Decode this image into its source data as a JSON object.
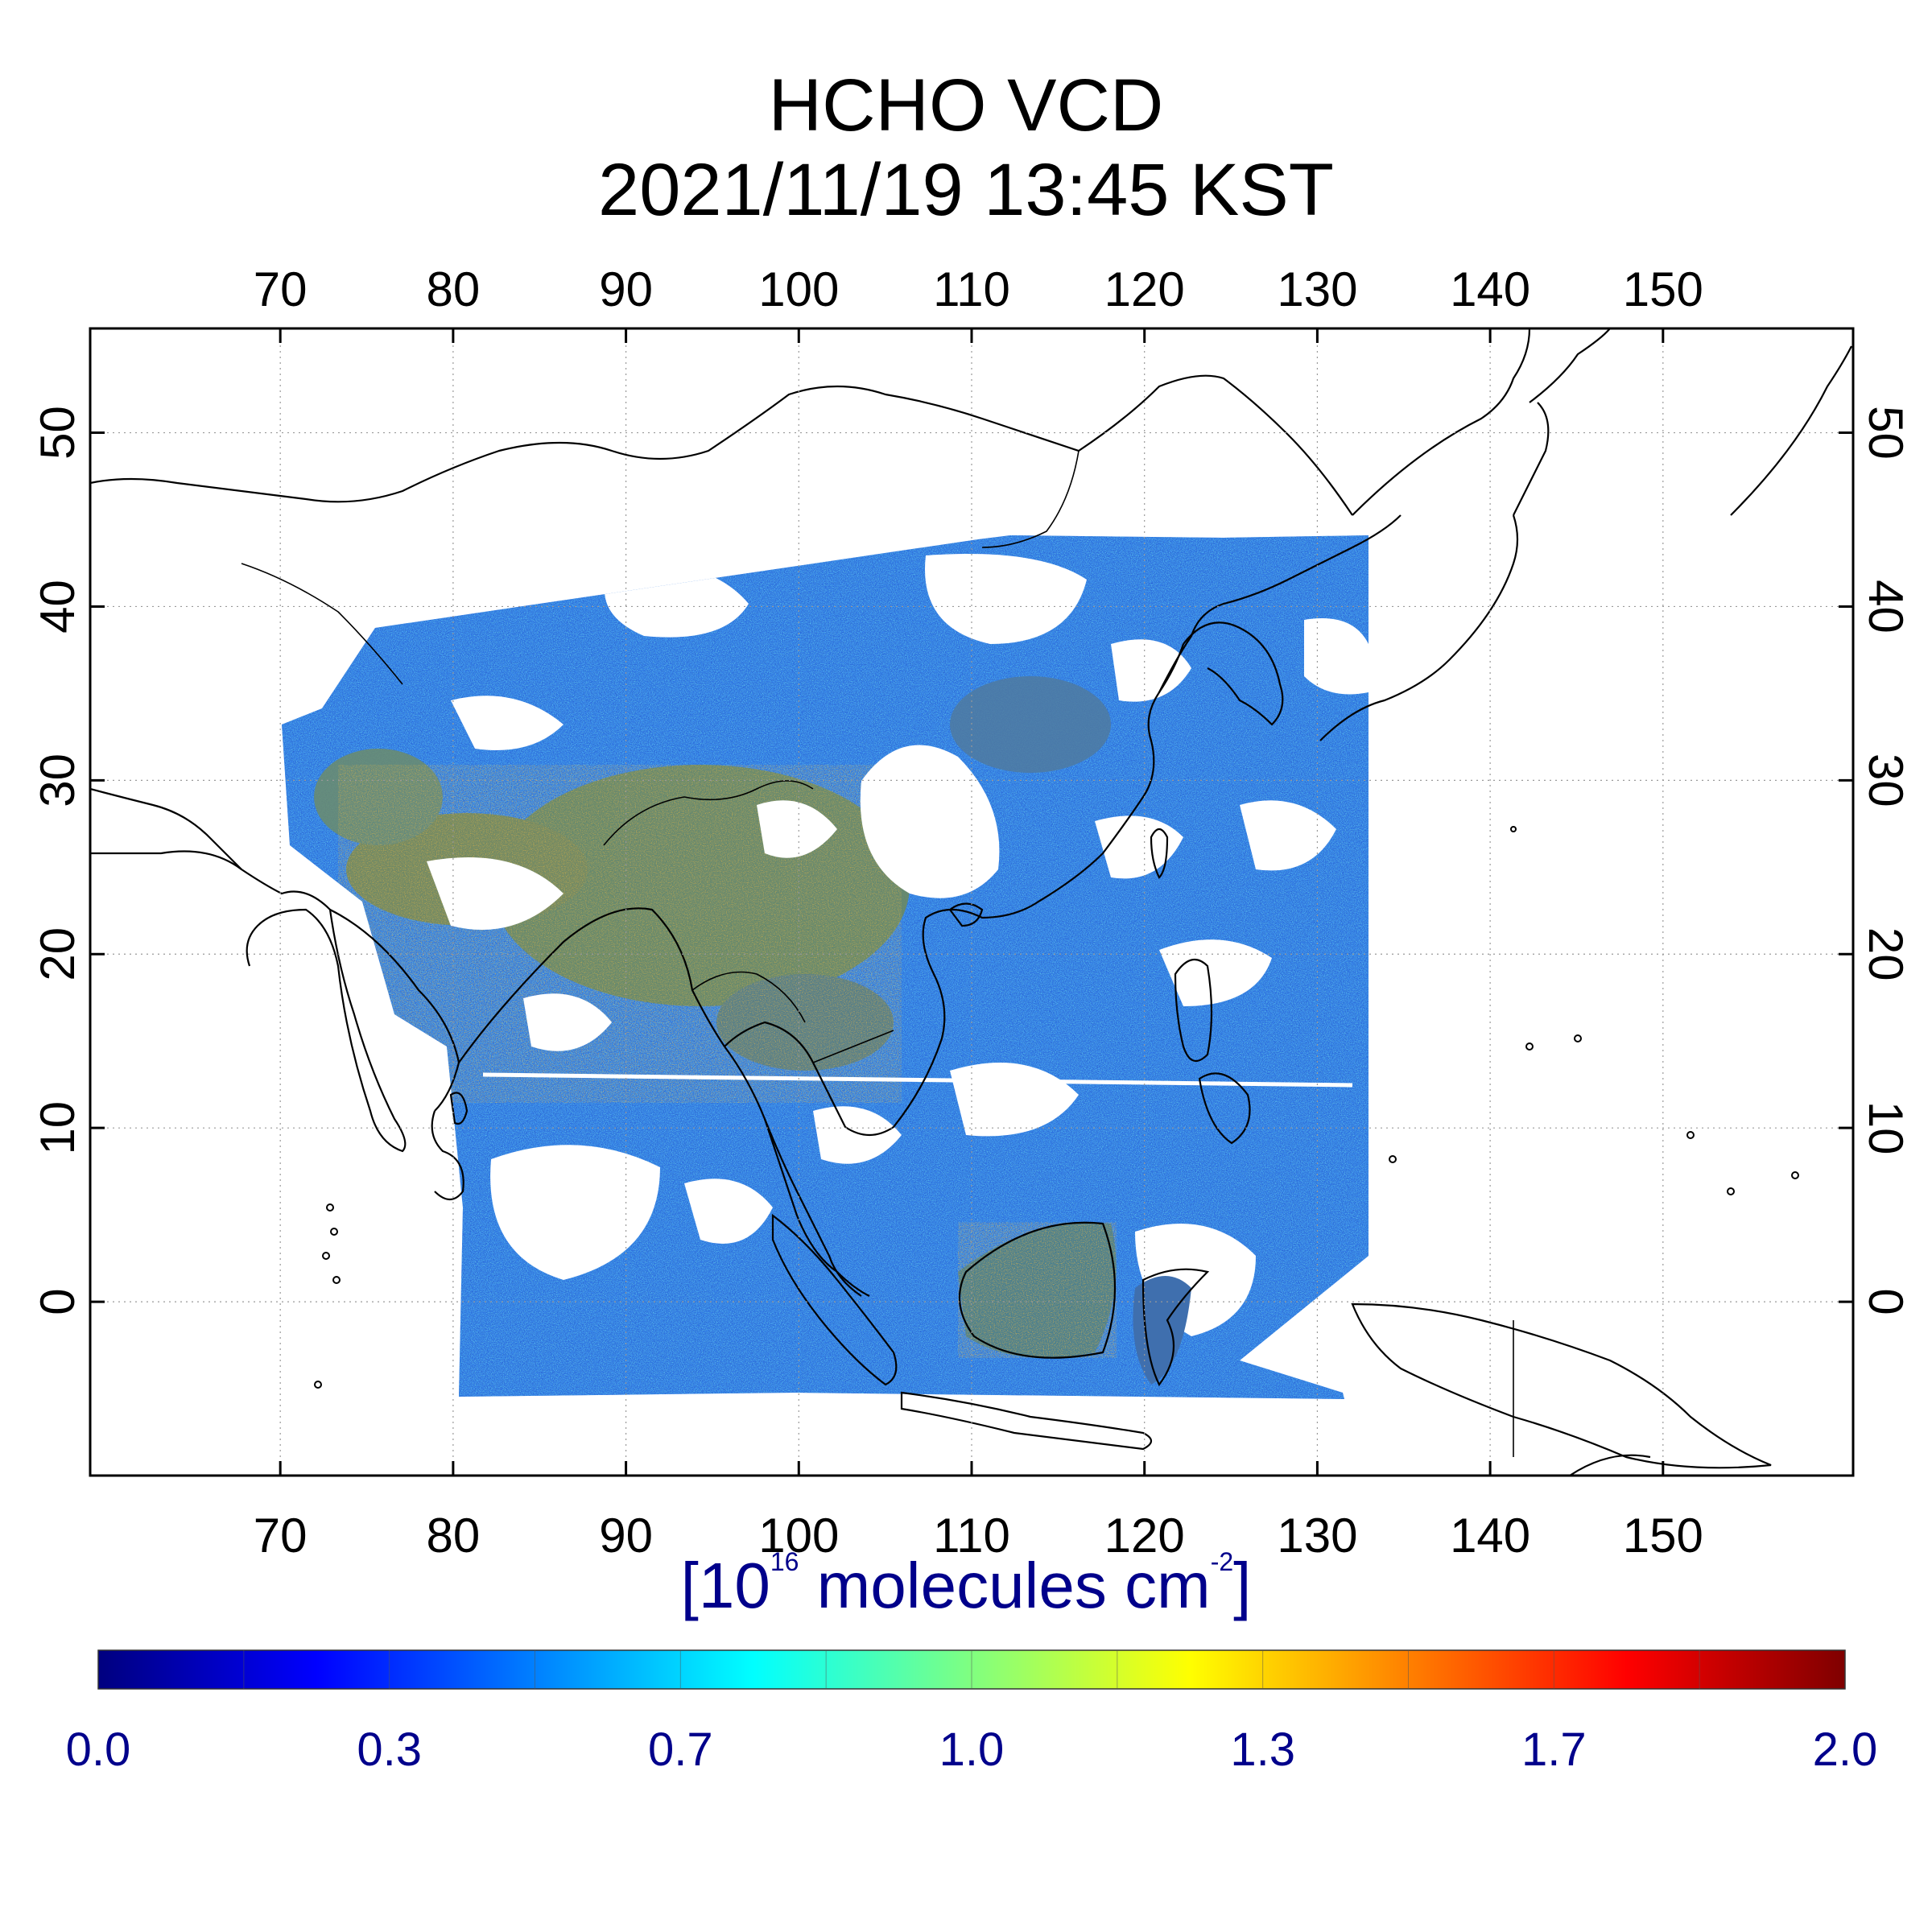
{
  "title_line1": "HCHO VCD",
  "title_line2": "2021/11/19 13:45 KST",
  "units": {
    "prefix": "[10",
    "exp1": "16",
    "middle": " molecules cm",
    "exp2": "-2",
    "suffix": "]"
  },
  "axes": {
    "lon_ticks": [
      "70",
      "80",
      "90",
      "100",
      "110",
      "120",
      "130",
      "140",
      "150"
    ],
    "lat_ticks": [
      "0",
      "10",
      "20",
      "30",
      "40",
      "50"
    ],
    "lon_range": [
      59,
      161
    ],
    "lat_range": [
      -10,
      56
    ],
    "grid": "dotted"
  },
  "colorbar": {
    "range": [
      0.0,
      2.0
    ],
    "tick_labels": [
      "0.0",
      "0.3",
      "0.7",
      "1.0",
      "1.3",
      "1.7",
      "2.0"
    ],
    "colors": [
      "#00007f",
      "#0000ff",
      "#0080ff",
      "#00ffff",
      "#80ff80",
      "#ffff00",
      "#ff8000",
      "#ff0000",
      "#7f0000"
    ]
  },
  "colors": {
    "land_outline": "#000000",
    "no_data": "#ffffff",
    "axis_frame": "#000000",
    "title": "#000000",
    "units": "#00008b"
  }
}
